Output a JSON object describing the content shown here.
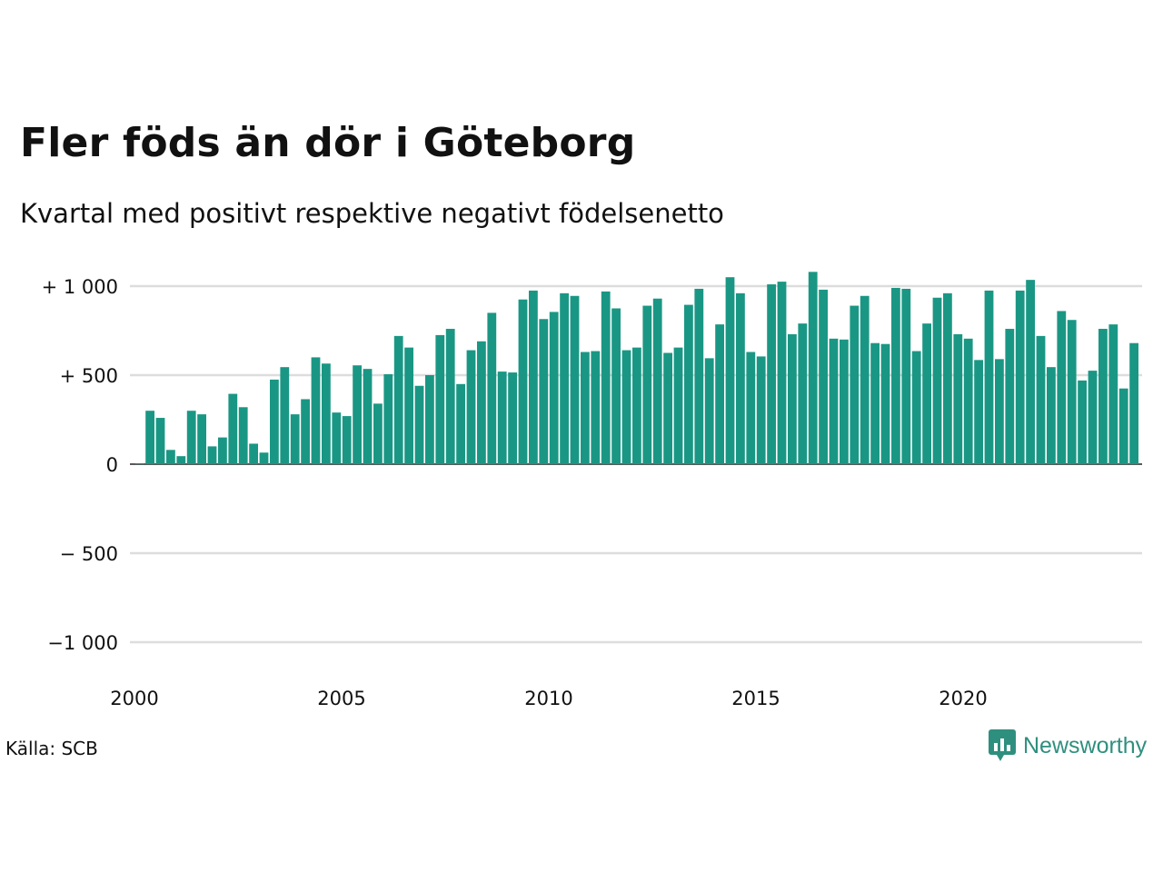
{
  "title": "Fler föds än dör i Göteborg",
  "subtitle": "Kvartal med positivt respektive negativt födelsenetto",
  "source": "Källa: SCB",
  "brand": {
    "name": "Newsworthy",
    "icon": "newsworthy-logo-icon",
    "color": "#2f8f7e"
  },
  "colors": {
    "bar": "#1a9784",
    "grid": "#dddddd",
    "zero_line": "#222222"
  },
  "chart_data": {
    "type": "bar",
    "title": "Fler föds än dör i Göteborg",
    "subtitle": "Kvartal med positivt respektive negativt födelsenetto",
    "xlabel": "",
    "ylabel": "",
    "ylim": [
      -1150,
      1150
    ],
    "grid": true,
    "y_ticks": [
      {
        "value": 1000,
        "label": "+ 1 000"
      },
      {
        "value": 500,
        "label": "+   500"
      },
      {
        "value": 0,
        "label": "0"
      },
      {
        "value": -500,
        "label": "−  500"
      },
      {
        "value": -1000,
        "label": "−1 000"
      }
    ],
    "x_ticks": [
      "2000",
      "2005",
      "2010",
      "2015",
      "2020"
    ],
    "start_year": 2000,
    "start_quarter": 1,
    "values": [
      5,
      300,
      260,
      80,
      45,
      300,
      280,
      100,
      150,
      395,
      320,
      115,
      65,
      475,
      545,
      280,
      365,
      600,
      565,
      290,
      270,
      555,
      535,
      340,
      505,
      720,
      655,
      440,
      500,
      725,
      760,
      450,
      640,
      690,
      850,
      520,
      515,
      925,
      975,
      815,
      855,
      960,
      945,
      630,
      635,
      970,
      875,
      640,
      655,
      890,
      930,
      625,
      655,
      895,
      985,
      595,
      785,
      1050,
      960,
      630,
      605,
      1010,
      1025,
      730,
      790,
      1080,
      980,
      705,
      700,
      890,
      945,
      680,
      675,
      990,
      985,
      635,
      790,
      935,
      960,
      730,
      705,
      585,
      975,
      590,
      760,
      975,
      1035,
      720,
      545,
      860,
      810,
      470,
      525,
      760,
      785,
      425,
      680
    ]
  }
}
